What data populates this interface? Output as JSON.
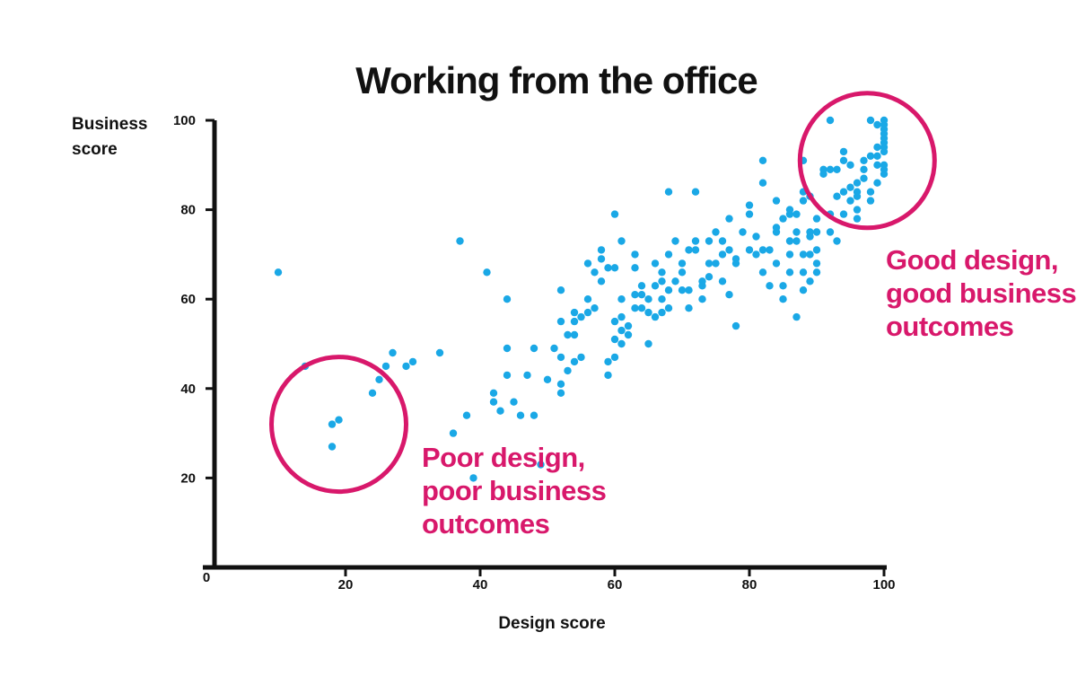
{
  "chart_data": {
    "type": "scatter",
    "title": "Working from the office",
    "xlabel": "Design score",
    "ylabel": [
      "Business",
      "score"
    ],
    "xlim": [
      0,
      100
    ],
    "ylim": [
      0,
      100
    ],
    "x_ticks": [
      20,
      40,
      60,
      80,
      100
    ],
    "y_ticks": [
      20,
      40,
      60,
      80,
      100
    ],
    "origin_label": "0",
    "grid": false,
    "point_color": "#1aa8e6",
    "highlight_color": "#d8186b",
    "points": [
      [
        10,
        66
      ],
      [
        14,
        45
      ],
      [
        18,
        27
      ],
      [
        18,
        32
      ],
      [
        19,
        33
      ],
      [
        24,
        39
      ],
      [
        25,
        42
      ],
      [
        26,
        45
      ],
      [
        27,
        48
      ],
      [
        29,
        45
      ],
      [
        30,
        46
      ],
      [
        34,
        48
      ],
      [
        36,
        30
      ],
      [
        37,
        73
      ],
      [
        38,
        34
      ],
      [
        39,
        20
      ],
      [
        41,
        66
      ],
      [
        42,
        39
      ],
      [
        42,
        37
      ],
      [
        43,
        35
      ],
      [
        44,
        49
      ],
      [
        44,
        43
      ],
      [
        44,
        60
      ],
      [
        45,
        37
      ],
      [
        46,
        34
      ],
      [
        47,
        43
      ],
      [
        48,
        49
      ],
      [
        48,
        34
      ],
      [
        49,
        23
      ],
      [
        50,
        42
      ],
      [
        51,
        49
      ],
      [
        52,
        39
      ],
      [
        52,
        41
      ],
      [
        52,
        47
      ],
      [
        52,
        55
      ],
      [
        52,
        62
      ],
      [
        53,
        44
      ],
      [
        53,
        52
      ],
      [
        54,
        55
      ],
      [
        54,
        57
      ],
      [
        54,
        52
      ],
      [
        54,
        46
      ],
      [
        55,
        47
      ],
      [
        55,
        56
      ],
      [
        56,
        60
      ],
      [
        56,
        68
      ],
      [
        56,
        57
      ],
      [
        57,
        58
      ],
      [
        57,
        66
      ],
      [
        58,
        64
      ],
      [
        58,
        69
      ],
      [
        58,
        71
      ],
      [
        59,
        67
      ],
      [
        59,
        46
      ],
      [
        59,
        43
      ],
      [
        60,
        47
      ],
      [
        60,
        51
      ],
      [
        60,
        55
      ],
      [
        60,
        67
      ],
      [
        60,
        79
      ],
      [
        61,
        53
      ],
      [
        61,
        73
      ],
      [
        61,
        56
      ],
      [
        61,
        60
      ],
      [
        61,
        50
      ],
      [
        62,
        54
      ],
      [
        62,
        52
      ],
      [
        63,
        61
      ],
      [
        63,
        58
      ],
      [
        63,
        70
      ],
      [
        63,
        67
      ],
      [
        64,
        63
      ],
      [
        64,
        58
      ],
      [
        64,
        61
      ],
      [
        65,
        57
      ],
      [
        65,
        60
      ],
      [
        65,
        50
      ],
      [
        66,
        56
      ],
      [
        66,
        63
      ],
      [
        66,
        68
      ],
      [
        67,
        60
      ],
      [
        67,
        57
      ],
      [
        67,
        64
      ],
      [
        67,
        66
      ],
      [
        68,
        58
      ],
      [
        68,
        62
      ],
      [
        68,
        70
      ],
      [
        68,
        84
      ],
      [
        69,
        64
      ],
      [
        69,
        73
      ],
      [
        70,
        62
      ],
      [
        70,
        66
      ],
      [
        70,
        68
      ],
      [
        71,
        58
      ],
      [
        71,
        71
      ],
      [
        71,
        62
      ],
      [
        72,
        71
      ],
      [
        72,
        73
      ],
      [
        72,
        84
      ],
      [
        73,
        64
      ],
      [
        73,
        60
      ],
      [
        73,
        63
      ],
      [
        74,
        65
      ],
      [
        74,
        68
      ],
      [
        74,
        73
      ],
      [
        75,
        75
      ],
      [
        75,
        68
      ],
      [
        76,
        64
      ],
      [
        76,
        70
      ],
      [
        76,
        73
      ],
      [
        77,
        78
      ],
      [
        77,
        71
      ],
      [
        77,
        61
      ],
      [
        78,
        54
      ],
      [
        78,
        69
      ],
      [
        78,
        68
      ],
      [
        79,
        75
      ],
      [
        80,
        71
      ],
      [
        80,
        81
      ],
      [
        80,
        79
      ],
      [
        81,
        70
      ],
      [
        81,
        74
      ],
      [
        82,
        66
      ],
      [
        82,
        71
      ],
      [
        82,
        86
      ],
      [
        82,
        91
      ],
      [
        83,
        63
      ],
      [
        83,
        71
      ],
      [
        84,
        75
      ],
      [
        84,
        76
      ],
      [
        84,
        82
      ],
      [
        84,
        68
      ],
      [
        85,
        60
      ],
      [
        85,
        63
      ],
      [
        85,
        78
      ],
      [
        86,
        79
      ],
      [
        86,
        70
      ],
      [
        86,
        66
      ],
      [
        86,
        73
      ],
      [
        86,
        80
      ],
      [
        87,
        56
      ],
      [
        87,
        73
      ],
      [
        87,
        75
      ],
      [
        87,
        79
      ],
      [
        88,
        82
      ],
      [
        88,
        66
      ],
      [
        88,
        62
      ],
      [
        88,
        84
      ],
      [
        88,
        91
      ],
      [
        89,
        70
      ],
      [
        89,
        75
      ],
      [
        89,
        74
      ],
      [
        89,
        83
      ],
      [
        90,
        68
      ],
      [
        90,
        71
      ],
      [
        90,
        75
      ],
      [
        90,
        78
      ],
      [
        91,
        88
      ],
      [
        91,
        89
      ],
      [
        92,
        89
      ],
      [
        92,
        75
      ],
      [
        92,
        79
      ],
      [
        92,
        100
      ],
      [
        93,
        89
      ],
      [
        93,
        83
      ],
      [
        93,
        73
      ],
      [
        94,
        93
      ],
      [
        94,
        91
      ],
      [
        94,
        79
      ],
      [
        95,
        82
      ],
      [
        95,
        85
      ],
      [
        96,
        86
      ],
      [
        96,
        84
      ],
      [
        96,
        80
      ],
      [
        96,
        83
      ],
      [
        97,
        89
      ],
      [
        97,
        91
      ],
      [
        97,
        87
      ],
      [
        98,
        92
      ],
      [
        98,
        84
      ],
      [
        98,
        82
      ],
      [
        99,
        86
      ],
      [
        99,
        90
      ],
      [
        99,
        94
      ],
      [
        100,
        88
      ],
      [
        100,
        90
      ],
      [
        100,
        93
      ],
      [
        100,
        94
      ],
      [
        100,
        95
      ],
      [
        100,
        89
      ],
      [
        100,
        98
      ],
      [
        100,
        97
      ],
      [
        100,
        100
      ],
      [
        98,
        100
      ],
      [
        99,
        92
      ],
      [
        99,
        99
      ],
      [
        100,
        99
      ],
      [
        100,
        96
      ],
      [
        96,
        78
      ],
      [
        95,
        90
      ],
      [
        94,
        84
      ],
      [
        90,
        66
      ],
      [
        89,
        64
      ],
      [
        88,
        70
      ]
    ],
    "annotations": [
      {
        "name": "poor-design",
        "lines": [
          "Poor design,",
          "poor business",
          "outcomes"
        ],
        "circle_center": [
          19,
          32
        ],
        "circle_radius_x": 10
      },
      {
        "name": "good-design",
        "lines": [
          "Good design,",
          "good business",
          "outcomes"
        ],
        "circle_center": [
          97.5,
          91
        ],
        "circle_radius_x": 10
      }
    ]
  }
}
